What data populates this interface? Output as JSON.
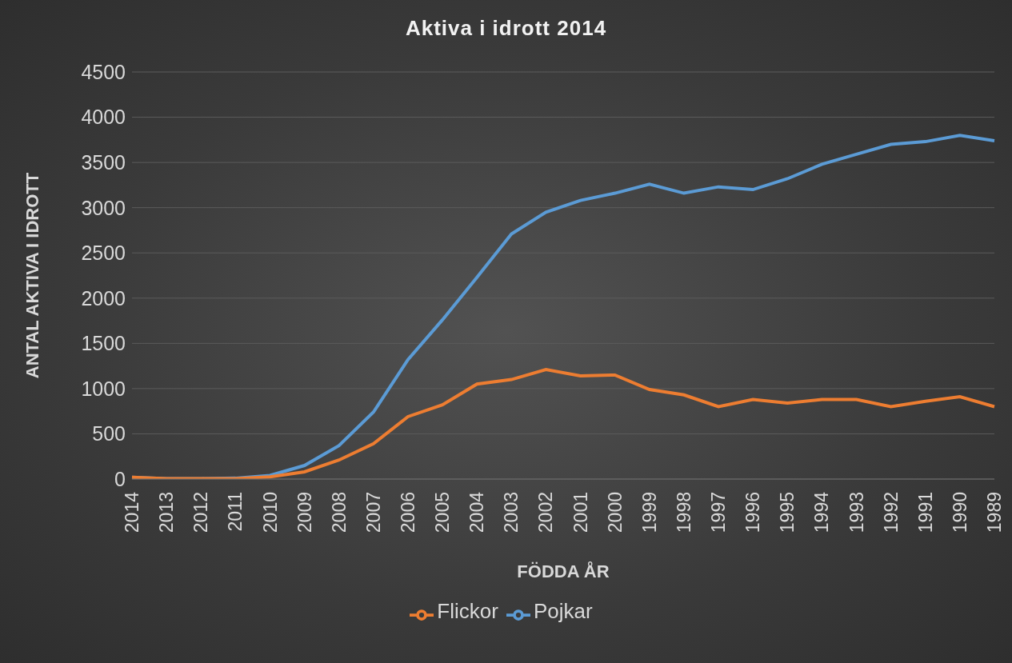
{
  "chart_data": {
    "type": "line",
    "title": "Aktiva i idrott 2014",
    "x_label": "FÖDDA ÅR",
    "y_label": "ANTAL AKTIVA I IDROTT",
    "categories": [
      "2014",
      "2013",
      "2012",
      "2011",
      "2010",
      "2009",
      "2008",
      "2007",
      "2006",
      "2005",
      "2004",
      "2003",
      "2002",
      "2001",
      "2000",
      "1999",
      "1998",
      "1997",
      "1996",
      "1995",
      "1994",
      "1993",
      "1992",
      "1991",
      "1990",
      "1989"
    ],
    "series": [
      {
        "name": "Pojkar",
        "color": "#5b9bd5",
        "values": [
          20,
          5,
          5,
          10,
          40,
          150,
          370,
          740,
          1320,
          1760,
          2230,
          2710,
          2950,
          3080,
          3160,
          3260,
          3160,
          3230,
          3200,
          3320,
          3480,
          3590,
          3700,
          3730,
          3800,
          3740
        ]
      },
      {
        "name": "Flickor",
        "color": "#ed7d31",
        "values": [
          20,
          5,
          5,
          5,
          25,
          80,
          210,
          390,
          690,
          820,
          1050,
          1100,
          1210,
          1140,
          1150,
          990,
          930,
          800,
          880,
          840,
          880,
          880,
          800,
          860,
          910,
          800
        ]
      }
    ],
    "ylim": [
      0,
      4500
    ],
    "yticks": [
      0,
      500,
      1000,
      1500,
      2000,
      2500,
      3000,
      3500,
      4000,
      4500
    ],
    "grid": true,
    "legend": "bottom"
  }
}
